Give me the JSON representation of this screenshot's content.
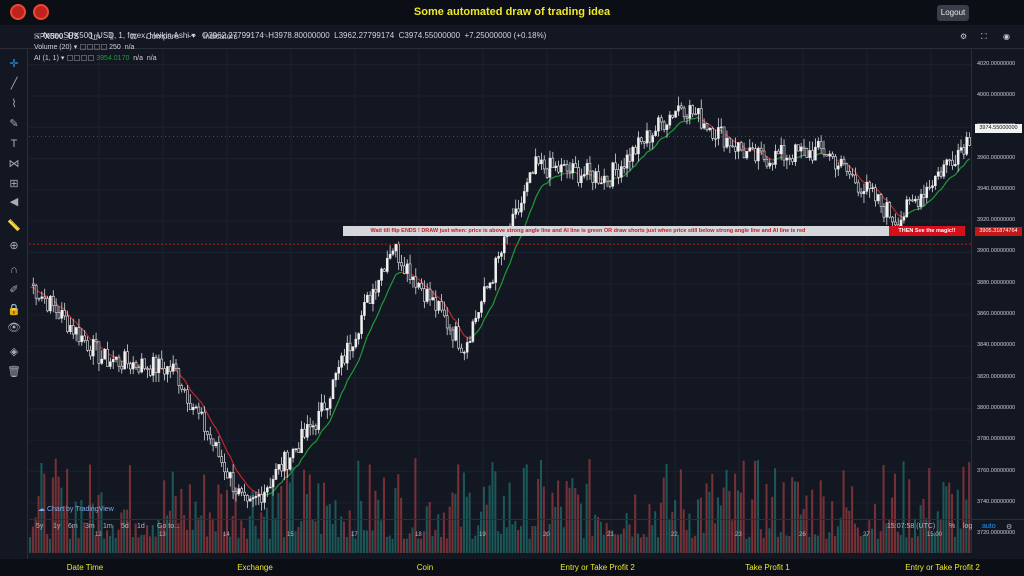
{
  "header": {
    "title": "Some automated draw of trading idea",
    "logout_label": "Logout"
  },
  "toolbar": {
    "symbol": "SPX500_US",
    "interval": "1m",
    "compare_label": "Compare",
    "indicators_label": "Indicators"
  },
  "legend": {
    "main": "forex:SPX500_USD, 1, forex, Heikin Ashi",
    "open": "O3962.27799174",
    "high": "H3978.80000000",
    "low": "L3962.27799174",
    "close": "C3974.55000000",
    "change": "+7.25000000 (+0.18%)",
    "volume_label": "Volume (20)",
    "volume_value": "250",
    "volume_na": "n/a",
    "ai_label": "AI (1, 1)",
    "ai_value": "3954.0170",
    "ai_na1": "n/a",
    "ai_na2": "n/a"
  },
  "banner": {
    "text": "Wait till flip ENDS !    DRAW just when:  price is above strong angle line and AI line is green        OR        draw shorts just when price still below strong angle line and AI line is red",
    "cta": "THEN See the magic!!"
  },
  "price_axis": {
    "labels": [
      "4020.00000000",
      "4000.00000000",
      "3980.00000000",
      "3960.00000000",
      "3940.00000000",
      "3920.00000000",
      "3900.00000000",
      "3880.00000000",
      "3860.00000000",
      "3840.00000000",
      "3820.00000000",
      "3800.00000000",
      "3780.00000000",
      "3760.00000000",
      "3740.00000000",
      "3720.00000000"
    ],
    "current_price": "3974.55000000",
    "line_price": "3905.31874764"
  },
  "time_axis": {
    "labels": [
      "12",
      "13",
      "14",
      "15",
      "17",
      "18",
      "19",
      "20",
      "21",
      "22",
      "23",
      "26",
      "27",
      "15:00"
    ]
  },
  "bottom": {
    "ranges": [
      "5y",
      "1y",
      "6m",
      "3m",
      "1m",
      "5d",
      "1d"
    ],
    "goto": "Go to...",
    "clock": "15:07:58 (UTC)",
    "pct": "%",
    "log": "log",
    "auto": "auto"
  },
  "watermark": "Chart by TradingView",
  "footer": {
    "columns": [
      "Date Time",
      "Exchange",
      "Coin",
      "Entry or Take Profit 2",
      "Take Profit 1",
      "Entry or Take Profit 2"
    ]
  },
  "colors": {
    "accent_title": "#f0e82a",
    "up": "#26a69a",
    "down": "#ef5350",
    "ai_green": "#1f9b3a",
    "ai_red": "#c0262c"
  },
  "chart_data": {
    "type": "line",
    "title": "",
    "xlabel": "",
    "ylabel": "",
    "ylim": [
      3708,
      4030
    ],
    "x": [
      "12",
      "13",
      "14",
      "15",
      "17",
      "18",
      "19",
      "20",
      "21",
      "22",
      "23",
      "26",
      "27",
      "15:00"
    ],
    "series": [
      {
        "values": [
          3880,
          3832,
          3825,
          3735,
          3795,
          3905,
          3840,
          3955,
          3948,
          3995,
          3960,
          3965,
          3920,
          3974
        ]
      }
    ],
    "horizontal_line": 3905.31874764
  }
}
